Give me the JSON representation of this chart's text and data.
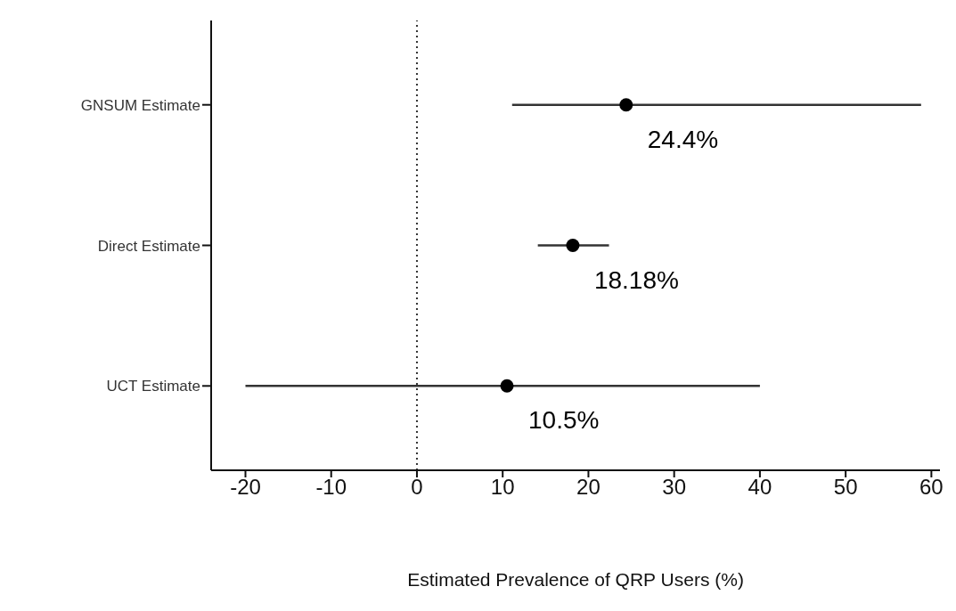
{
  "chart_data": {
    "type": "scatter",
    "orientation": "horizontal",
    "xlabel": "Estimated Prevalence of QRP Users (%)",
    "categories": [
      "GNSUM Estimate",
      "Direct Estimate",
      "UCT Estimate"
    ],
    "values": [
      24.4,
      18.18,
      10.5
    ],
    "errors": [
      [
        11.1,
        58.8
      ],
      [
        14.1,
        22.4
      ],
      [
        -20,
        40
      ]
    ],
    "value_labels": [
      "24.4%",
      "18.18%",
      "10.5%"
    ],
    "color": "#000000",
    "marker": "circle",
    "grid": false,
    "legend": false,
    "xlim": [
      -24,
      61
    ],
    "xticks": [
      -20,
      -10,
      0,
      10,
      20,
      30,
      40,
      50,
      60
    ],
    "ref_lines": [
      {
        "axis": "x",
        "value": 0,
        "line_style": "dotted",
        "color": "#333333"
      }
    ]
  }
}
